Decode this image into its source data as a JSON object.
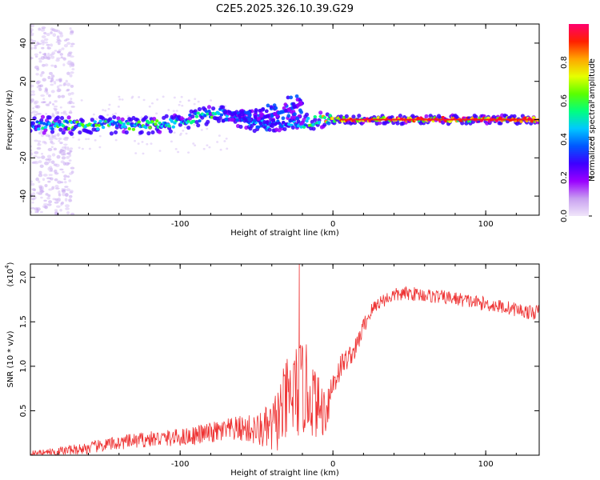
{
  "chart_data": [
    {
      "type": "heatmap",
      "title": "C2E5.2025.326.10.39.G29",
      "xlabel": "Height of straight line (km)",
      "ylabel": "Frequency (Hz)",
      "xlim": [
        -198,
        135
      ],
      "ylim": [
        -50,
        50
      ],
      "x_ticks": [
        -100,
        0,
        100
      ],
      "x_tick_labels": [
        "-100",
        "0",
        "100"
      ],
      "y_ticks": [
        -40,
        -20,
        0,
        20,
        40
      ],
      "y_tick_labels": [
        "-40",
        "-20",
        "0",
        "20",
        "40"
      ],
      "colorbar": {
        "label": "Normalized spectral amplitude",
        "range": [
          0,
          1
        ],
        "ticks": [
          0.0,
          0.2,
          0.4,
          0.6,
          0.8
        ],
        "tick_labels": [
          "0.0",
          "0.2",
          "0.4",
          "0.6",
          "0.8"
        ],
        "colors": [
          "#f0e6fa",
          "#c8a0f0",
          "#9a00ff",
          "#3d00ff",
          "#0057ff",
          "#00c8ff",
          "#00ff80",
          "#5aff00",
          "#e6ff00",
          "#ffa500",
          "#ff2000",
          "#ff006e"
        ]
      },
      "ridge": {
        "x": [
          -198,
          -180,
          -160,
          -140,
          -120,
          -110,
          -100,
          -90,
          -80,
          -70,
          -62,
          -50,
          -40,
          -30,
          -20,
          -10,
          0,
          10,
          30,
          60,
          100,
          135
        ],
        "frequency": [
          -3,
          -3,
          -3,
          -3,
          -3,
          -2.5,
          -1,
          1,
          2.5,
          3.5,
          1,
          -2,
          -2.5,
          -3,
          -2,
          0,
          0,
          0,
          0,
          0,
          0,
          0
        ],
        "amplitude": [
          0.5,
          0.55,
          0.6,
          0.58,
          0.6,
          0.55,
          0.5,
          0.55,
          0.55,
          0.5,
          0.4,
          0.45,
          0.45,
          0.4,
          0.5,
          0.7,
          0.85,
          0.9,
          0.92,
          0.93,
          0.93,
          0.92
        ]
      }
    },
    {
      "type": "line",
      "xlabel": "Height of straight line (km)",
      "ylabel": "SNR (10 * v/v)",
      "y_scale_label": "(x10",
      "y_scale_exponent": "4",
      "y_scale_close": ")",
      "xlim": [
        -198,
        135
      ],
      "ylim": [
        0,
        2.15
      ],
      "x_ticks": [
        -100,
        0,
        100
      ],
      "x_tick_labels": [
        "-100",
        "0",
        "100"
      ],
      "y_ticks": [
        0.5,
        1.0,
        1.5,
        2.0
      ],
      "y_tick_labels": [
        "0.5",
        "1.0",
        "1.5",
        "2.0"
      ],
      "line_color": "#ee3333",
      "series": [
        {
          "name": "SNR",
          "x": [
            -198,
            -180,
            -160,
            -140,
            -120,
            -100,
            -80,
            -60,
            -50,
            -40,
            -35,
            -30,
            -25,
            -20,
            -15,
            -10,
            -5,
            0,
            5,
            10,
            15,
            20,
            25,
            30,
            40,
            50,
            60,
            70,
            80,
            90,
            100,
            110,
            120,
            130,
            135
          ],
          "values": [
            0.02,
            0.04,
            0.08,
            0.14,
            0.18,
            0.2,
            0.25,
            0.3,
            0.28,
            0.3,
            0.45,
            0.6,
            0.7,
            0.75,
            0.7,
            0.55,
            0.5,
            0.8,
            1.0,
            1.1,
            1.2,
            1.45,
            1.62,
            1.72,
            1.8,
            1.82,
            1.8,
            1.78,
            1.76,
            1.73,
            1.7,
            1.67,
            1.64,
            1.6,
            1.62
          ],
          "noise": [
            0.03,
            0.05,
            0.07,
            0.08,
            0.09,
            0.1,
            0.12,
            0.15,
            0.18,
            0.3,
            0.4,
            0.5,
            0.55,
            0.55,
            0.5,
            0.35,
            0.3,
            0.2,
            0.15,
            0.12,
            0.12,
            0.1,
            0.09,
            0.08,
            0.08,
            0.08,
            0.08,
            0.08,
            0.08,
            0.08,
            0.08,
            0.08,
            0.08,
            0.08,
            0.08
          ]
        }
      ],
      "annotations": [
        {
          "x": -22,
          "value": 2.15,
          "text": ""
        }
      ]
    }
  ]
}
